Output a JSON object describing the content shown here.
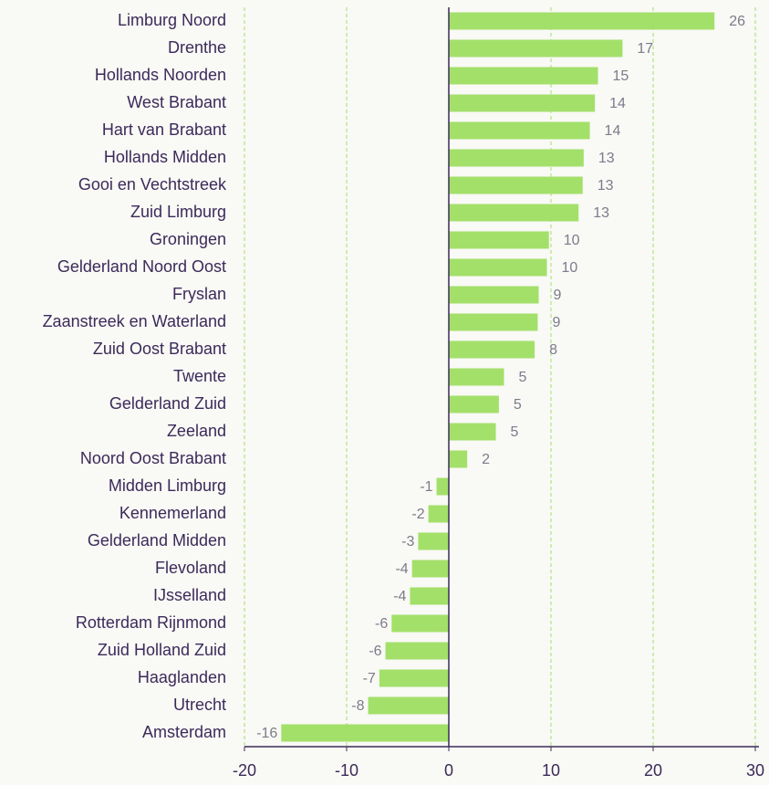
{
  "chart_data": {
    "type": "barh",
    "categories": [
      "Limburg Noord",
      "Drenthe",
      "Hollands Noorden",
      "West Brabant",
      "Hart van Brabant",
      "Hollands Midden",
      "Gooi en Vechtstreek",
      "Zuid Limburg",
      "Groningen",
      "Gelderland Noord Oost",
      "Fryslan",
      "Zaanstreek en Waterland",
      "Zuid Oost Brabant",
      "Twente",
      "Gelderland Zuid",
      "Zeeland",
      "Noord Oost Brabant",
      "Midden Limburg",
      "Kennemerland",
      "Gelderland Midden",
      "Flevoland",
      "IJsselland",
      "Rotterdam Rijnmond",
      "Zuid Holland Zuid",
      "Haaglanden",
      "Utrecht",
      "Amsterdam"
    ],
    "values": [
      26.0,
      17.0,
      14.6,
      14.3,
      13.8,
      13.2,
      13.1,
      12.7,
      9.8,
      9.6,
      8.8,
      8.7,
      8.4,
      5.4,
      4.9,
      4.6,
      1.8,
      -1.2,
      -2.0,
      -3.0,
      -3.6,
      -3.8,
      -5.6,
      -6.2,
      -6.8,
      -7.9,
      -16.4
    ],
    "value_labels": [
      "26",
      "17",
      "15",
      "14",
      "14",
      "13",
      "13",
      "13",
      "10",
      "10",
      "9",
      "9",
      "8",
      "5",
      "5",
      "5",
      "2",
      "-1",
      "-2",
      "-3",
      "-4",
      "-4",
      "-6",
      "-6",
      "-7",
      "-8",
      "-16"
    ],
    "color": "#a3e06a",
    "xlim": [
      -20,
      30
    ],
    "xticks": [
      -20,
      -10,
      0,
      10,
      20,
      30
    ],
    "grid": true
  }
}
